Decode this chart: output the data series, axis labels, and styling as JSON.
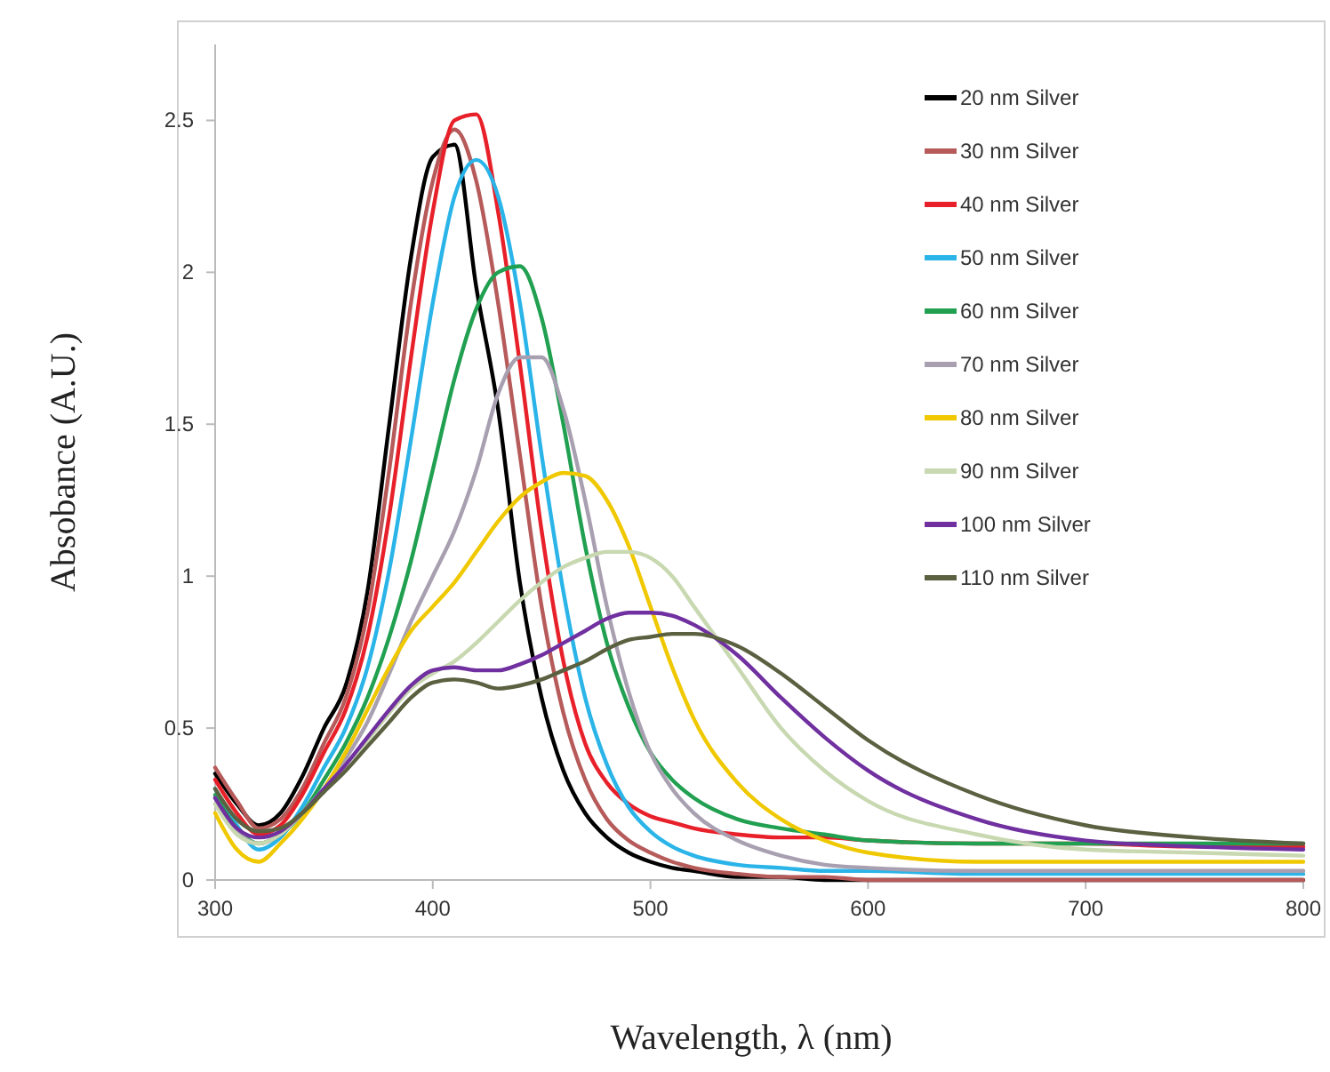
{
  "chart_data": {
    "type": "line",
    "xlabel": "Wavelength, λ (nm)",
    "ylabel": "Absobance (A.U.)",
    "xlim": [
      300,
      800
    ],
    "xticks": [
      300,
      400,
      500,
      600,
      700,
      800
    ],
    "ylim": [
      0,
      2.75
    ],
    "yticks": [
      0,
      0.5,
      1,
      1.5,
      2,
      2.5
    ],
    "grid": false,
    "legend": "top right",
    "line_style": "solid",
    "marker": "none",
    "x": [
      300,
      310,
      320,
      330,
      340,
      350,
      360,
      370,
      380,
      390,
      400,
      410,
      420,
      430,
      440,
      450,
      460,
      470,
      480,
      490,
      500,
      510,
      520,
      540,
      560,
      580,
      600,
      650,
      700,
      750,
      800
    ],
    "series": [
      {
        "name": "20 nm Silver",
        "color": "#000000",
        "values": [
          0.35,
          0.25,
          0.18,
          0.22,
          0.34,
          0.5,
          0.64,
          0.95,
          1.5,
          2.05,
          2.38,
          2.42,
          1.95,
          1.55,
          0.98,
          0.6,
          0.36,
          0.22,
          0.14,
          0.09,
          0.06,
          0.04,
          0.03,
          0.01,
          0.01,
          0,
          0,
          0,
          0,
          0,
          0
        ]
      },
      {
        "name": "30 nm Silver",
        "color": "#b65a5a",
        "values": [
          0.37,
          0.26,
          0.17,
          0.2,
          0.3,
          0.45,
          0.6,
          0.88,
          1.35,
          1.9,
          2.3,
          2.47,
          2.3,
          1.9,
          1.4,
          0.9,
          0.55,
          0.33,
          0.2,
          0.13,
          0.09,
          0.06,
          0.04,
          0.02,
          0.01,
          0.01,
          0,
          0,
          0,
          0,
          0
        ]
      },
      {
        "name": "40 nm Silver",
        "color": "#e8202a",
        "values": [
          0.33,
          0.22,
          0.15,
          0.18,
          0.28,
          0.42,
          0.56,
          0.8,
          1.2,
          1.72,
          2.2,
          2.5,
          2.52,
          2.2,
          1.7,
          1.15,
          0.72,
          0.45,
          0.32,
          0.25,
          0.21,
          0.19,
          0.17,
          0.15,
          0.14,
          0.14,
          0.13,
          0.12,
          0.12,
          0.11,
          0.11
        ]
      },
      {
        "name": "50 nm Silver",
        "color": "#2ab4e8",
        "values": [
          0.3,
          0.18,
          0.1,
          0.14,
          0.24,
          0.37,
          0.5,
          0.7,
          1.02,
          1.45,
          1.9,
          2.25,
          2.37,
          2.25,
          1.9,
          1.4,
          0.95,
          0.6,
          0.38,
          0.24,
          0.16,
          0.11,
          0.08,
          0.05,
          0.04,
          0.03,
          0.03,
          0.02,
          0.02,
          0.02,
          0.02
        ]
      },
      {
        "name": "60 nm Silver",
        "color": "#20a050",
        "values": [
          0.28,
          0.17,
          0.12,
          0.15,
          0.22,
          0.33,
          0.45,
          0.6,
          0.8,
          1.05,
          1.35,
          1.65,
          1.88,
          2.0,
          2.02,
          1.85,
          1.5,
          1.1,
          0.78,
          0.57,
          0.42,
          0.33,
          0.27,
          0.2,
          0.17,
          0.15,
          0.13,
          0.12,
          0.12,
          0.12,
          0.12
        ]
      },
      {
        "name": "70 nm Silver",
        "color": "#a8a0b0",
        "values": [
          0.27,
          0.16,
          0.12,
          0.15,
          0.22,
          0.3,
          0.4,
          0.52,
          0.68,
          0.85,
          1.0,
          1.15,
          1.35,
          1.6,
          1.72,
          1.72,
          1.55,
          1.25,
          0.9,
          0.62,
          0.42,
          0.3,
          0.22,
          0.13,
          0.08,
          0.05,
          0.04,
          0.03,
          0.03,
          0.03,
          0.03
        ]
      },
      {
        "name": "80 nm Silver",
        "color": "#f0c800",
        "values": [
          0.22,
          0.1,
          0.06,
          0.12,
          0.2,
          0.3,
          0.42,
          0.56,
          0.7,
          0.82,
          0.9,
          0.98,
          1.08,
          1.18,
          1.26,
          1.31,
          1.34,
          1.33,
          1.25,
          1.1,
          0.9,
          0.7,
          0.53,
          0.32,
          0.2,
          0.13,
          0.09,
          0.06,
          0.06,
          0.06,
          0.06
        ]
      },
      {
        "name": "90 nm Silver",
        "color": "#c8d8b0",
        "values": [
          0.25,
          0.15,
          0.12,
          0.15,
          0.22,
          0.3,
          0.38,
          0.46,
          0.55,
          0.63,
          0.68,
          0.72,
          0.78,
          0.85,
          0.92,
          0.98,
          1.03,
          1.06,
          1.08,
          1.08,
          1.06,
          1.0,
          0.9,
          0.7,
          0.5,
          0.36,
          0.26,
          0.15,
          0.1,
          0.09,
          0.08
        ]
      },
      {
        "name": "100 nm Silver",
        "color": "#7030a0",
        "values": [
          0.27,
          0.17,
          0.14,
          0.16,
          0.22,
          0.3,
          0.38,
          0.47,
          0.56,
          0.64,
          0.69,
          0.7,
          0.69,
          0.69,
          0.71,
          0.74,
          0.78,
          0.82,
          0.86,
          0.88,
          0.88,
          0.87,
          0.84,
          0.74,
          0.6,
          0.47,
          0.36,
          0.2,
          0.13,
          0.11,
          0.1
        ]
      },
      {
        "name": "110 nm Silver",
        "color": "#5a6040",
        "values": [
          0.3,
          0.2,
          0.16,
          0.17,
          0.22,
          0.29,
          0.36,
          0.44,
          0.52,
          0.6,
          0.65,
          0.66,
          0.65,
          0.63,
          0.64,
          0.66,
          0.69,
          0.72,
          0.76,
          0.79,
          0.8,
          0.81,
          0.81,
          0.77,
          0.68,
          0.57,
          0.46,
          0.28,
          0.18,
          0.14,
          0.12
        ]
      }
    ]
  }
}
